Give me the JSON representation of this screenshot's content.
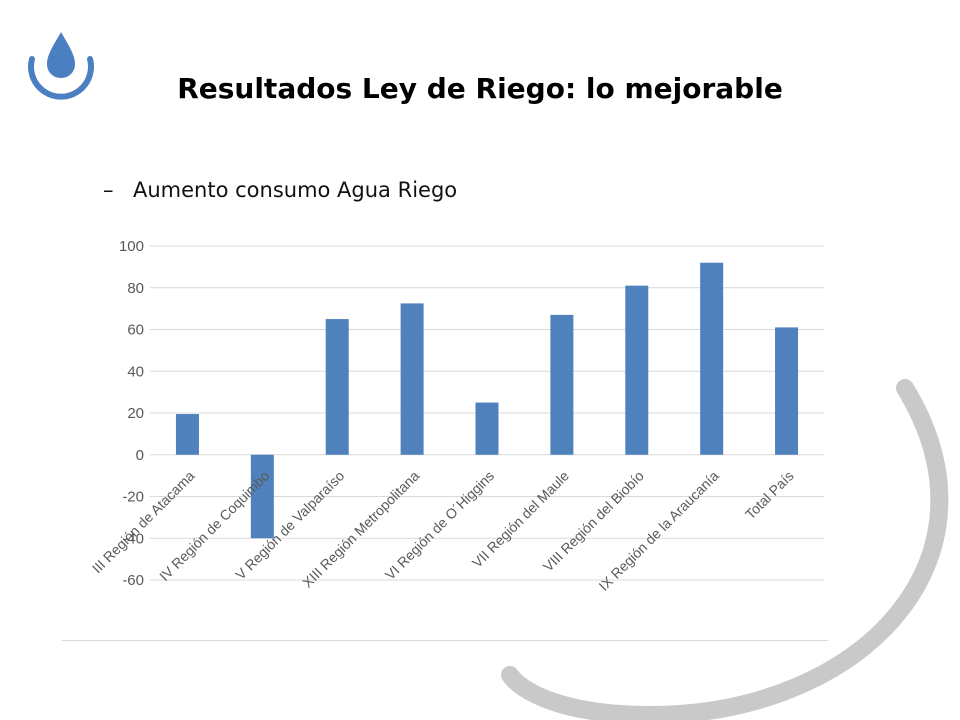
{
  "slide": {
    "title": "Resultados Ley de Riego: lo mejorable",
    "bullet_marker": "–",
    "bullet_text": "Aumento consumo Agua Riego"
  },
  "icons": {
    "logo": "water-drop-icon"
  },
  "colors": {
    "bar": "#4f81bd",
    "logo": "#4a7fc1",
    "decor_arc": "#c9c9c9",
    "grid": "#d9d9d9"
  },
  "chart_data": {
    "type": "bar",
    "categories": [
      "III Región de Atacama",
      "IV Región de Coquimbo",
      "V Región de Valparaíso",
      "XIII Región Metropolitana",
      "VI Región de O´Higgins",
      "VII Región del Maule",
      "VIII Región del Biobío",
      "IX Región de la Araucanía",
      "Total País"
    ],
    "values": [
      19.5,
      -40,
      65,
      72.5,
      25,
      67,
      81,
      92,
      61
    ],
    "ylim": [
      -60,
      100
    ],
    "yticks": [
      100,
      80,
      60,
      40,
      20,
      0,
      -20,
      -40,
      -60
    ],
    "grid": true,
    "legend": "none"
  }
}
